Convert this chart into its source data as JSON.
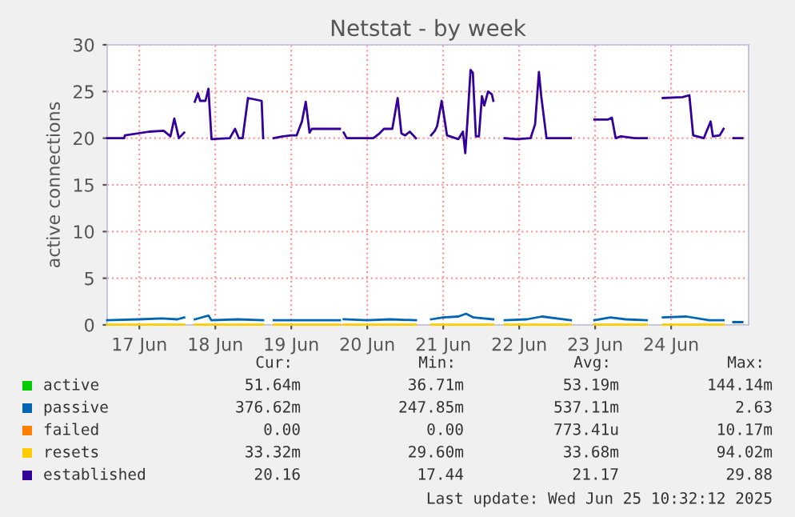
{
  "chart_data": {
    "type": "line",
    "title": "Netstat - by week",
    "ylabel": "active connections",
    "xlim": [
      "2025-06-17T01:50",
      "2025-06-25T12:29"
    ],
    "xticks": [
      {
        "value": "2025-06-17T12:00",
        "label": "17 Jun"
      },
      {
        "value": "2025-06-18T12:00",
        "label": "18 Jun"
      },
      {
        "value": "2025-06-19T12:00",
        "label": "19 Jun"
      },
      {
        "value": "2025-06-20T12:00",
        "label": "20 Jun"
      },
      {
        "value": "2025-06-21T12:00",
        "label": "21 Jun"
      },
      {
        "value": "2025-06-22T12:00",
        "label": "22 Jun"
      },
      {
        "value": "2025-06-23T12:00",
        "label": "23 Jun"
      },
      {
        "value": "2025-06-24T12:00",
        "label": "24 Jun"
      }
    ],
    "ylim": [
      0,
      30
    ],
    "yticks": [
      0,
      5,
      10,
      15,
      20,
      25,
      30
    ],
    "grid": true,
    "legend": "bottom",
    "marker": "none",
    "line_style": "solid",
    "series": [
      {
        "name": "active",
        "color": "#00cc00",
        "values": [
          null
        ]
      },
      {
        "name": "passive",
        "color": "#0066b3",
        "x": [
          "2025-06-17T01:50",
          "2025-06-17T12:00",
          "2025-06-17T19:12",
          "2025-06-18T00:00",
          "2025-06-18T02:10",
          "2025-06-18T03:50",
          "2025-06-18T05:31",
          "2025-06-18T09:50",
          "2025-06-18T10:48",
          "2025-06-18T19:12",
          "2025-06-19T03:07",
          "2025-06-19T04:48",
          "2025-06-19T06:29",
          "2025-06-19T12:00",
          "2025-06-19T19:12",
          "2025-06-20T03:22",
          "2025-06-20T03:50",
          "2025-06-20T04:34",
          "2025-06-20T12:00",
          "2025-06-20T19:12",
          "2025-06-21T03:22",
          "2025-06-21T05:46",
          "2025-06-21T08:10",
          "2025-06-21T12:00",
          "2025-06-21T16:48",
          "2025-06-21T19:12",
          "2025-06-21T21:36",
          "2025-06-22T03:50",
          "2025-06-22T05:46",
          "2025-06-22T07:26",
          "2025-06-22T14:24",
          "2025-06-22T19:12",
          "2025-06-23T04:19",
          "2025-06-23T07:12",
          "2025-06-23T11:46",
          "2025-06-23T16:48",
          "2025-06-23T21:36",
          "2025-06-24T04:19",
          "2025-06-24T07:12",
          "2025-06-24T09:22",
          "2025-06-24T16:48",
          "2025-06-25T00:00",
          "2025-06-25T04:34",
          "2025-06-25T07:12",
          "2025-06-25T07:40",
          "2025-06-25T10:30"
        ],
        "values": [
          0.5,
          0.6,
          0.7,
          0.6,
          0.8,
          null,
          0.6,
          1.0,
          0.5,
          0.6,
          0.5,
          null,
          0.5,
          0.5,
          0.5,
          0.5,
          null,
          0.6,
          0.5,
          0.6,
          0.5,
          null,
          0.6,
          0.8,
          0.9,
          1.2,
          0.8,
          0.6,
          null,
          0.5,
          0.6,
          0.9,
          0.5,
          null,
          0.5,
          0.8,
          0.6,
          0.5,
          null,
          0.8,
          0.9,
          0.5,
          0.5,
          null,
          0.3,
          0.3
        ]
      },
      {
        "name": "failed",
        "color": "#ff8000",
        "values": [
          null
        ]
      },
      {
        "name": "resets",
        "color": "#ffcc00",
        "x": [
          "2025-06-17T01:50",
          "2025-06-18T02:10",
          "2025-06-18T03:50",
          "2025-06-18T05:31",
          "2025-06-19T03:07",
          "2025-06-19T04:48",
          "2025-06-19T06:29",
          "2025-06-20T03:22",
          "2025-06-20T03:50",
          "2025-06-20T04:34",
          "2025-06-21T03:22",
          "2025-06-21T05:46",
          "2025-06-21T08:10",
          "2025-06-22T03:50",
          "2025-06-22T05:46",
          "2025-06-22T07:26",
          "2025-06-23T04:19",
          "2025-06-23T07:12",
          "2025-06-23T11:46",
          "2025-06-24T04:19",
          "2025-06-24T07:12",
          "2025-06-24T09:22",
          "2025-06-25T04:34"
        ],
        "values": [
          0.03,
          0.03,
          null,
          0.03,
          0.03,
          null,
          0.03,
          0.03,
          null,
          0.03,
          0.03,
          null,
          0.03,
          0.03,
          null,
          0.03,
          0.03,
          null,
          0.03,
          0.03,
          null,
          0.03,
          0.03
        ]
      },
      {
        "name": "established",
        "color": "#330099",
        "x": [
          "2025-06-17T01:50",
          "2025-06-17T07:12",
          "2025-06-17T07:26",
          "2025-06-17T15:07",
          "2025-06-17T19:41",
          "2025-06-17T21:50",
          "2025-06-17T23:02",
          "2025-06-18T00:29",
          "2025-06-18T02:10",
          "2025-06-18T03:50",
          "2025-06-18T05:31",
          "2025-06-18T06:29",
          "2025-06-18T07:12",
          "2025-06-18T08:53",
          "2025-06-18T09:50",
          "2025-06-18T10:48",
          "2025-06-18T16:34",
          "2025-06-18T18:14",
          "2025-06-18T19:26",
          "2025-06-18T20:38",
          "2025-06-18T22:19",
          "2025-06-19T02:38",
          "2025-06-19T03:07",
          "2025-06-19T04:48",
          "2025-06-19T06:29",
          "2025-06-19T09:22",
          "2025-06-19T12:00",
          "2025-06-19T13:41",
          "2025-06-19T15:22",
          "2025-06-19T16:34",
          "2025-06-19T17:46",
          "2025-06-19T18:29",
          "2025-06-20T00:29",
          "2025-06-20T03:22",
          "2025-06-20T03:50",
          "2025-06-20T04:34",
          "2025-06-20T05:31",
          "2025-06-20T13:55",
          "2025-06-20T15:50",
          "2025-06-20T17:17",
          "2025-06-20T19:55",
          "2025-06-20T21:36",
          "2025-06-20T22:48",
          "2025-06-21T00:00",
          "2025-06-21T01:26",
          "2025-06-21T03:22",
          "2025-06-21T05:46",
          "2025-06-21T08:10",
          "2025-06-21T09:22",
          "2025-06-21T10:05",
          "2025-06-21T11:31",
          "2025-06-21T13:12",
          "2025-06-21T16:48",
          "2025-06-21T18:14",
          "2025-06-21T18:58",
          "2025-06-21T19:41",
          "2025-06-21T20:38",
          "2025-06-21T21:22",
          "2025-06-21T22:19",
          "2025-06-21T23:17",
          "2025-06-22T00:14",
          "2025-06-22T00:58",
          "2025-06-22T02:10",
          "2025-06-22T03:22",
          "2025-06-22T03:50",
          "2025-06-22T05:46",
          "2025-06-22T07:26",
          "2025-06-22T11:17",
          "2025-06-22T15:36",
          "2025-06-22T17:02",
          "2025-06-22T18:14",
          "2025-06-22T18:58",
          "2025-06-22T20:38",
          "2025-06-23T04:19",
          "2025-06-23T07:12",
          "2025-06-23T11:46",
          "2025-06-23T16:05",
          "2025-06-23T17:17",
          "2025-06-23T18:29",
          "2025-06-23T20:10",
          "2025-06-24T00:29",
          "2025-06-24T04:19",
          "2025-06-24T07:12",
          "2025-06-24T09:22",
          "2025-06-24T15:36",
          "2025-06-24T17:46",
          "2025-06-24T18:58",
          "2025-06-24T22:19",
          "2025-06-25T00:29",
          "2025-06-25T01:12",
          "2025-06-25T03:22",
          "2025-06-25T04:34",
          "2025-06-25T07:12",
          "2025-06-25T07:40",
          "2025-06-25T10:30"
        ],
        "values": [
          20,
          20,
          20.3,
          20.7,
          20.8,
          20.2,
          22.1,
          20,
          20.6,
          null,
          23.9,
          24.8,
          24,
          24,
          25.3,
          19.9,
          20,
          21,
          20,
          20,
          24.3,
          24,
          20,
          null,
          20,
          20.2,
          20.3,
          20.3,
          21.8,
          23.9,
          20.6,
          21,
          21,
          21,
          null,
          20.6,
          20,
          20,
          20.5,
          21,
          21,
          24.3,
          20.5,
          20.3,
          20.7,
          20,
          null,
          20.3,
          20.8,
          21.3,
          24,
          20.3,
          19.9,
          20.7,
          18.4,
          22,
          27.3,
          27,
          20.2,
          20.2,
          24.5,
          23.5,
          25,
          24.7,
          24,
          null,
          20,
          19.9,
          20,
          21.5,
          27.1,
          24.5,
          20,
          20,
          null,
          22,
          22,
          22.2,
          20,
          20.2,
          20,
          20,
          null,
          24.3,
          24.4,
          24.6,
          20.3,
          20,
          21.8,
          20.2,
          20.3,
          21,
          null,
          20,
          20
        ]
      }
    ],
    "annotations": [
      "Cur:",
      "Min:",
      "Avg:",
      "Max:",
      "51.64m",
      "36.71m",
      "53.19m",
      "144.14m",
      "376.62m",
      "247.85m",
      "537.11m",
      "2.63",
      "0.00",
      "0.00",
      "773.41u",
      "10.17m",
      "33.32m",
      "29.60m",
      "33.68m",
      "94.02m",
      "20.16",
      "17.44",
      "21.17",
      "29.88",
      "Last update: Wed Jun 25 10:32:12 2025"
    ]
  }
}
